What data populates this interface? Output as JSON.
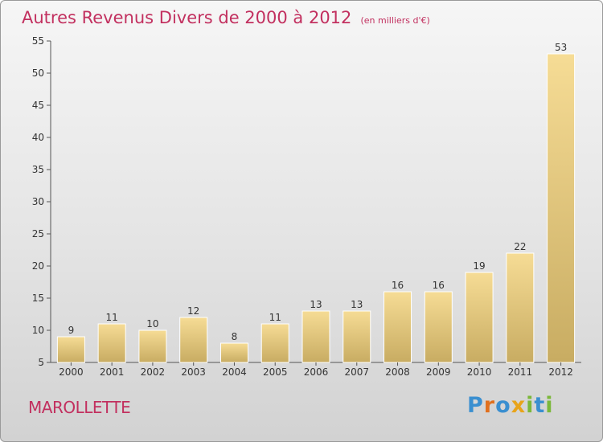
{
  "header": {
    "title": "Autres Revenus Divers de 2000 à 2012",
    "unit": "(en milliers d'€)"
  },
  "footer": {
    "commune": "MAROLLETTE",
    "logo": {
      "letters": [
        "P",
        "r",
        "o",
        "x",
        "i",
        "t",
        "i"
      ],
      "colors": [
        "#3a8fd0",
        "#e0701e",
        "#3a8fd0",
        "#e8a41a",
        "#7bb83a",
        "#3a8fd0",
        "#7bb83a"
      ]
    }
  },
  "colors": {
    "accent": "#c2305f",
    "bar_light": "#f6dc95",
    "bar_dark": "#c8ac62",
    "axis": "#555555"
  },
  "chart_data": {
    "type": "bar",
    "title": "Autres Revenus Divers de 2000 à 2012",
    "subtitle": "(en milliers d'€)",
    "categories": [
      "2000",
      "2001",
      "2002",
      "2003",
      "2004",
      "2005",
      "2006",
      "2007",
      "2008",
      "2009",
      "2010",
      "2011",
      "2012"
    ],
    "values": [
      9,
      11,
      10,
      12,
      8,
      11,
      13,
      13,
      16,
      16,
      19,
      22,
      53
    ],
    "ylim": [
      5,
      55
    ],
    "yticks": [
      5,
      10,
      15,
      20,
      25,
      30,
      35,
      40,
      45,
      50,
      55
    ],
    "grid": false,
    "data_labels": true
  }
}
